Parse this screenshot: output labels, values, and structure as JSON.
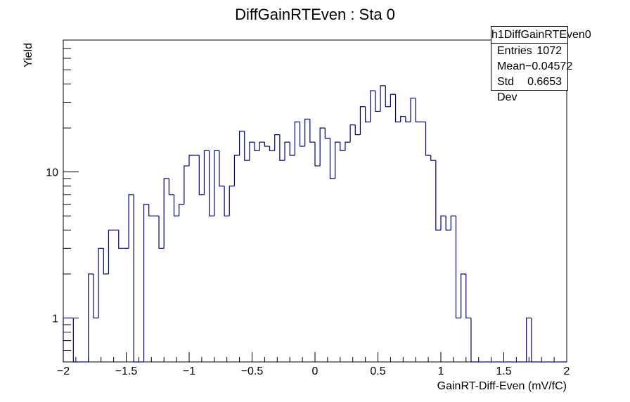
{
  "chart_data": {
    "type": "histogram",
    "title": "DiffGainRTEven : Sta 0",
    "xlabel": "GainRT-Diff-Even (mV/fC)",
    "ylabel": "Yield",
    "xlim": [
      -2,
      2
    ],
    "ylim": [
      0.5,
      80
    ],
    "yscale": "log",
    "grid": false,
    "x_ticks": [
      -2,
      -1.5,
      -1,
      -0.5,
      0,
      0.5,
      1,
      1.5,
      2
    ],
    "x_tick_labels": [
      "−2",
      "−1.5",
      "−1",
      "−0.5",
      "0",
      "0.5",
      "1",
      "1.5",
      "2"
    ],
    "y_ticks": [
      1,
      10
    ],
    "y_tick_labels": [
      "1",
      "10"
    ],
    "bin_width": 0.04,
    "bins_start": -2,
    "values": [
      1,
      1,
      0,
      0,
      0,
      2,
      1,
      3,
      2,
      4,
      4,
      3,
      3,
      7,
      0,
      0,
      6,
      5,
      5,
      3,
      9,
      7,
      5,
      6,
      11,
      13,
      13,
      7,
      14,
      5,
      14,
      8,
      5,
      8,
      13,
      19,
      12,
      16,
      14,
      16,
      15,
      14,
      18,
      12,
      16,
      13,
      22,
      15,
      23,
      16,
      11,
      20,
      17,
      9,
      16,
      14,
      16,
      21,
      18,
      28,
      22,
      36,
      26,
      39,
      28,
      34,
      22,
      24,
      22,
      32,
      22,
      22,
      13,
      12,
      4,
      5,
      4,
      5,
      1,
      2,
      1,
      0,
      0,
      0,
      0,
      0,
      0,
      0,
      0,
      0,
      0,
      0,
      1,
      0,
      0,
      0,
      0,
      0,
      0,
      0
    ],
    "stats": {
      "name": "h1DiffGainRTEven0",
      "rows": [
        {
          "label": "Entries",
          "value": "1072"
        },
        {
          "label": "Mean",
          "value": "−0.04572"
        },
        {
          "label": "Std Dev",
          "value": "0.6653"
        }
      ]
    },
    "line_color": "#000080",
    "axis_color": "#000000"
  }
}
